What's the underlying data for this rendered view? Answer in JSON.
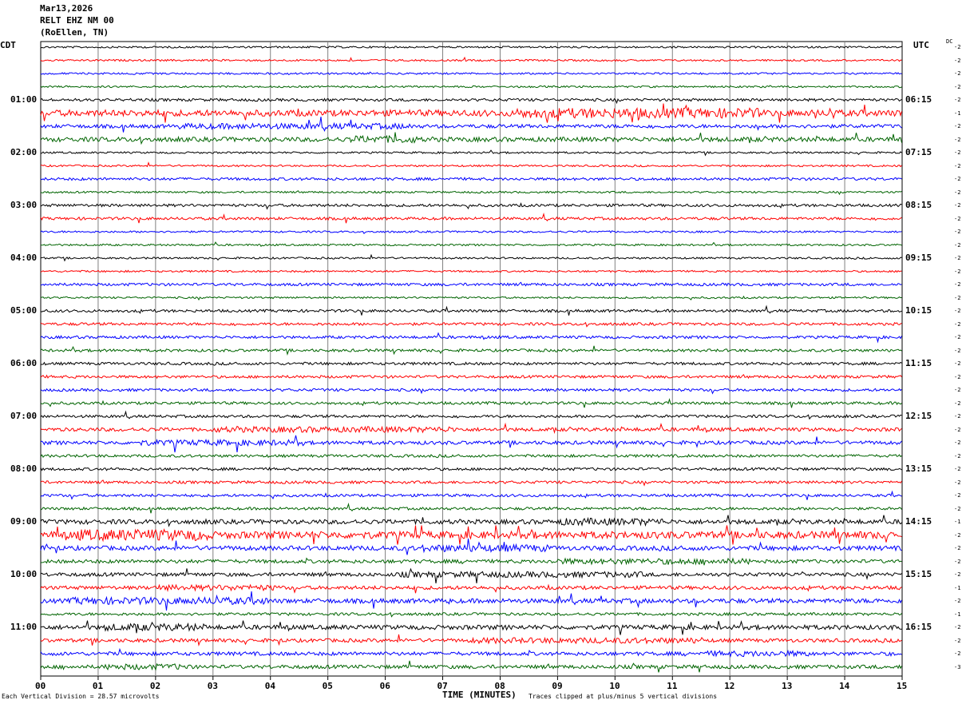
{
  "header": {
    "date": "Mar13,2026",
    "station": "RELT EHZ NM 00",
    "location": "(RoEllen, TN)"
  },
  "left_timezone": "CDT",
  "right_timezone": "UTC",
  "dc_label": "DC",
  "footer": {
    "vertical_division": "Each Vertical Division =   28.57 microvolts",
    "xlabel": "TIME (MINUTES)",
    "clip_note": "Traces clipped at plus/minus 5 vertical divisions"
  },
  "colors": {
    "trace_cycle": [
      "#000000",
      "#ff0000",
      "#0000ff",
      "#006400"
    ],
    "grid": "#808080",
    "background": "#ffffff"
  },
  "chart_data": {
    "type": "line",
    "title": "",
    "xlabel": "TIME (MINUTES)",
    "xlim": [
      0,
      15
    ],
    "x_ticks": [
      "00",
      "01",
      "02",
      "03",
      "04",
      "05",
      "06",
      "07",
      "08",
      "09",
      "10",
      "11",
      "12",
      "13",
      "14",
      "15"
    ],
    "left_hour_labels": [
      "01:00",
      "02:00",
      "03:00",
      "04:00",
      "05:00",
      "06:00",
      "07:00",
      "08:00",
      "09:00",
      "10:00",
      "11:00"
    ],
    "right_hour_labels": [
      "06:15",
      "07:15",
      "08:15",
      "09:15",
      "10:15",
      "11:15",
      "12:15",
      "13:15",
      "14:15",
      "15:15",
      "16:15"
    ],
    "trace_count": 48,
    "dc_offsets": [
      -2,
      -2,
      -2,
      -2,
      -2,
      -1,
      -2,
      -2,
      -2,
      -2,
      -2,
      -2,
      -2,
      -2,
      -2,
      -2,
      -2,
      -2,
      -2,
      -2,
      -2,
      -2,
      -2,
      -2,
      -2,
      -2,
      -2,
      -2,
      -2,
      -2,
      -2,
      -2,
      -2,
      -2,
      -2,
      -2,
      -1,
      -2,
      -2,
      -2,
      -2,
      -1,
      -2,
      -1,
      -2,
      -2,
      -2,
      -3
    ],
    "trace_activity": [
      1,
      1,
      1,
      1,
      2,
      6,
      3,
      4,
      1,
      1,
      2,
      1,
      2,
      2,
      1,
      1,
      1,
      1,
      2,
      1,
      2,
      2,
      2,
      2,
      2,
      2,
      2,
      2,
      2,
      3,
      3,
      2,
      2,
      2,
      2,
      2,
      4,
      7,
      4,
      3,
      3,
      3,
      4,
      2,
      4,
      3,
      3,
      3
    ]
  }
}
